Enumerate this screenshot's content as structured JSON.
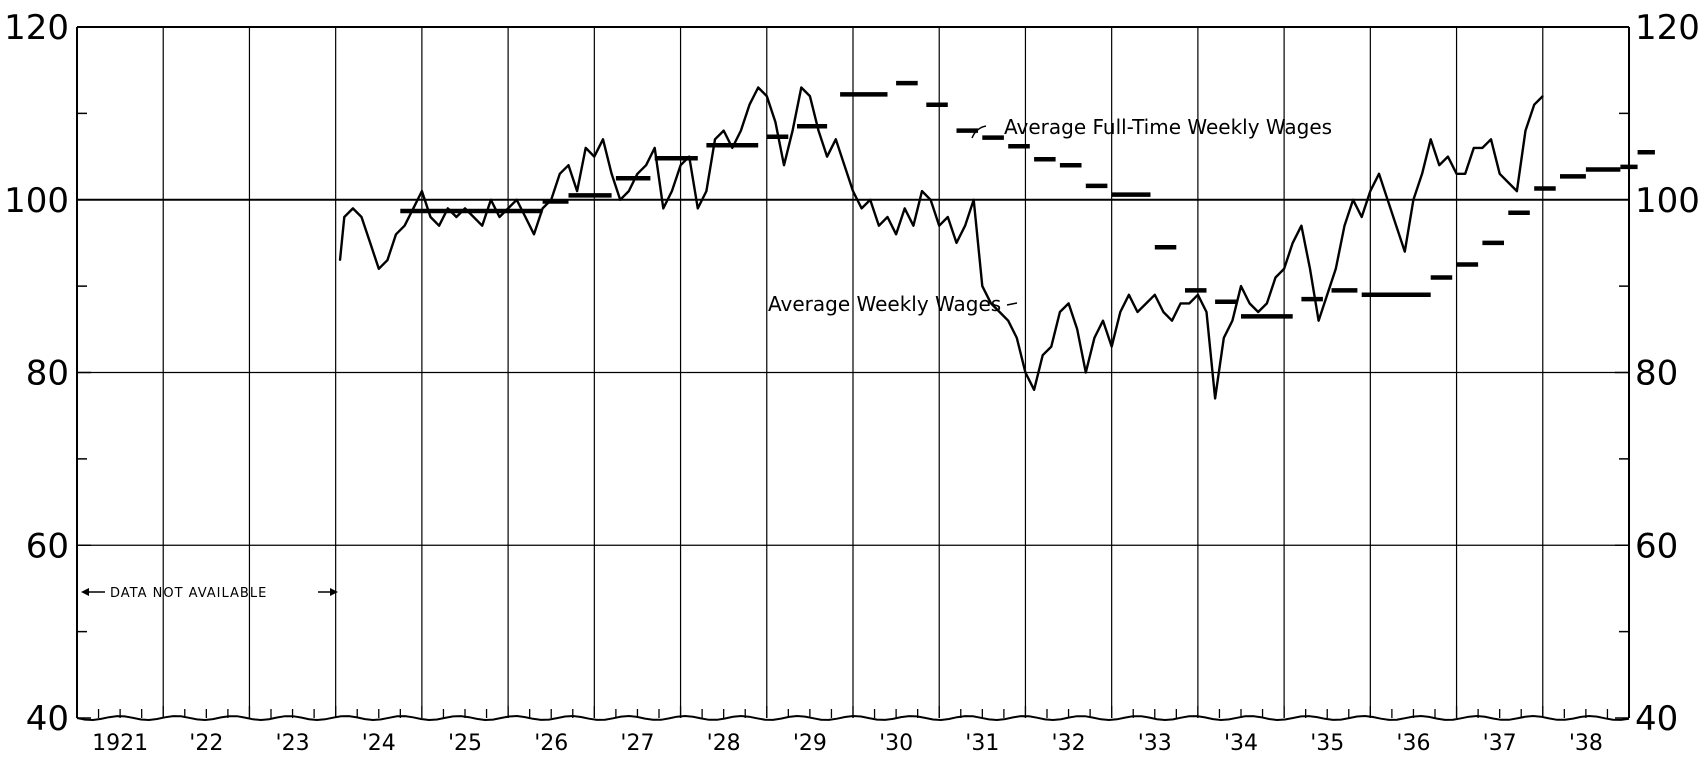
{
  "chart_data": {
    "type": "line",
    "title": "",
    "xlabel": "",
    "ylabel": "",
    "xlim": [
      1921,
      1939
    ],
    "ylim": [
      40,
      120
    ],
    "grid": true,
    "y_ticks_major": [
      40,
      60,
      80,
      100,
      120
    ],
    "y_tick_labels": [
      "40",
      "60",
      "80",
      "100",
      "120"
    ],
    "x_tick_labels": [
      "1921",
      "'22",
      "'23",
      "'24",
      "'25",
      "'26",
      "'27",
      "'28",
      "'29",
      "'30",
      "'31",
      "'32",
      "'33",
      "'34",
      "'35",
      "'36",
      "'37",
      "'38"
    ],
    "annotations": {
      "data_not_available": "DATA NOT AVAILABLE",
      "full_time_label": "Average Full-Time Weekly Wages",
      "weekly_label": "Average Weekly Wages"
    },
    "reference_line": 100,
    "series": [
      {
        "key": "weekly",
        "style": "thin-line",
        "x": [
          1924.05,
          1924.1,
          1924.2,
          1924.3,
          1924.4,
          1924.5,
          1924.6,
          1924.7,
          1924.8,
          1924.9,
          1925.0,
          1925.1,
          1925.2,
          1925.3,
          1925.4,
          1925.5,
          1925.6,
          1925.7,
          1925.8,
          1925.9,
          1926.0,
          1926.1,
          1926.2,
          1926.3,
          1926.4,
          1926.5,
          1926.6,
          1926.7,
          1926.8,
          1926.9,
          1927.0,
          1927.1,
          1927.2,
          1927.3,
          1927.4,
          1927.5,
          1927.6,
          1927.7,
          1927.8,
          1927.9,
          1928.0,
          1928.1,
          1928.2,
          1928.3,
          1928.4,
          1928.5,
          1928.6,
          1928.7,
          1928.8,
          1928.9,
          1929.0,
          1929.1,
          1929.2,
          1929.3,
          1929.4,
          1929.5,
          1929.6,
          1929.7,
          1929.8,
          1929.9,
          1930.0,
          1930.1,
          1930.2,
          1930.3,
          1930.4,
          1930.5,
          1930.6,
          1930.7,
          1930.8,
          1930.9,
          1931.0,
          1931.1,
          1931.2,
          1931.3,
          1931.4,
          1931.5,
          1931.6,
          1931.7,
          1931.8,
          1931.9,
          1932.0,
          1932.1,
          1932.2,
          1932.3,
          1932.4,
          1932.5,
          1932.6,
          1932.7,
          1932.8,
          1932.9,
          1933.0,
          1933.1,
          1933.2,
          1933.3,
          1933.4,
          1933.5,
          1933.6,
          1933.7,
          1933.8,
          1933.9,
          1934.0,
          1934.1,
          1934.2,
          1934.3,
          1934.4,
          1934.5,
          1934.6,
          1934.7,
          1934.8,
          1934.9,
          1935.0,
          1935.1,
          1935.2,
          1935.3,
          1935.4,
          1935.5,
          1935.6,
          1935.7,
          1935.8,
          1935.9,
          1936.0,
          1936.1,
          1936.2,
          1936.3,
          1936.4,
          1936.5,
          1936.6,
          1936.7,
          1936.8,
          1936.9,
          1937.0,
          1937.1,
          1937.2,
          1937.3,
          1937.4,
          1937.5,
          1937.6,
          1937.7,
          1937.8,
          1937.9,
          1938.0
        ],
        "values": [
          93,
          98,
          99,
          98,
          95,
          92,
          93,
          96,
          97,
          99,
          101,
          98,
          97,
          99,
          98,
          99,
          98,
          97,
          100,
          98,
          99,
          100,
          98,
          96,
          99,
          100,
          103,
          104,
          101,
          106,
          105,
          107,
          103,
          100,
          101,
          103,
          104,
          106,
          99,
          101,
          104,
          105,
          99,
          101,
          107,
          108,
          106,
          108,
          111,
          113,
          112,
          109,
          104,
          108,
          113,
          112,
          108,
          105,
          107,
          104,
          101,
          99,
          100,
          97,
          98,
          96,
          99,
          97,
          101,
          100,
          97,
          98,
          95,
          97,
          100,
          90,
          88,
          87,
          86,
          84,
          80,
          78,
          82,
          83,
          87,
          88,
          85,
          80,
          84,
          86,
          83,
          87,
          89,
          87,
          88,
          89,
          87,
          86,
          88,
          88,
          89,
          87,
          77,
          84,
          86,
          90,
          88,
          87,
          88,
          91,
          92,
          95,
          97,
          92,
          86,
          89,
          92,
          97,
          100,
          98,
          101,
          103,
          100,
          97,
          94,
          100,
          103,
          107,
          104,
          105,
          103,
          103,
          106,
          106,
          107,
          103,
          102,
          101,
          108,
          111,
          112
        ]
      },
      {
        "key": "full_time",
        "style": "step-dashes",
        "segments": [
          {
            "x0": 1924.75,
            "x1": 1926.4,
            "value": 98.7
          },
          {
            "x0": 1926.4,
            "x1": 1926.7,
            "value": 99.8
          },
          {
            "x0": 1926.7,
            "x1": 1927.2,
            "value": 100.5
          },
          {
            "x0": 1927.25,
            "x1": 1927.65,
            "value": 102.5
          },
          {
            "x0": 1927.7,
            "x1": 1928.2,
            "value": 104.8
          },
          {
            "x0": 1928.3,
            "x1": 1928.9,
            "value": 106.3
          },
          {
            "x0": 1929.0,
            "x1": 1929.25,
            "value": 107.3
          },
          {
            "x0": 1929.35,
            "x1": 1929.7,
            "value": 108.5
          },
          {
            "x0": 1929.85,
            "x1": 1930.4,
            "value": 112.2
          },
          {
            "x0": 1930.5,
            "x1": 1930.75,
            "value": 113.5
          },
          {
            "x0": 1930.85,
            "x1": 1931.1,
            "value": 111
          },
          {
            "x0": 1931.2,
            "x1": 1931.45,
            "value": 108
          },
          {
            "x0": 1931.5,
            "x1": 1931.75,
            "value": 107.2
          },
          {
            "x0": 1931.8,
            "x1": 1932.05,
            "value": 106.2
          },
          {
            "x0": 1932.1,
            "x1": 1932.35,
            "value": 104.7
          },
          {
            "x0": 1932.4,
            "x1": 1932.65,
            "value": 104
          },
          {
            "x0": 1932.7,
            "x1": 1932.95,
            "value": 101.6
          },
          {
            "x0": 1933.0,
            "x1": 1933.45,
            "value": 100.6
          },
          {
            "x0": 1933.5,
            "x1": 1933.75,
            "value": 94.5
          },
          {
            "x0": 1933.85,
            "x1": 1934.1,
            "value": 89.5
          },
          {
            "x0": 1934.2,
            "x1": 1934.45,
            "value": 88.2
          },
          {
            "x0": 1934.5,
            "x1": 1935.1,
            "value": 86.5
          },
          {
            "x0": 1935.2,
            "x1": 1935.45,
            "value": 88.5
          },
          {
            "x0": 1935.55,
            "x1": 1935.85,
            "value": 89.5
          },
          {
            "x0": 1935.9,
            "x1": 1936.7,
            "value": 89
          },
          {
            "x0": 1936.7,
            "x1": 1936.95,
            "value": 91
          },
          {
            "x0": 1937.0,
            "x1": 1937.25,
            "value": 92.5
          },
          {
            "x0": 1937.3,
            "x1": 1937.55,
            "value": 95
          },
          {
            "x0": 1937.6,
            "x1": 1937.85,
            "value": 98.5
          },
          {
            "x0": 1937.9,
            "x1": 1938.15,
            "value": 101.3
          },
          {
            "x0": 1938.2,
            "x1": 1938.5,
            "value": 102.7
          },
          {
            "x0": 1938.5,
            "x1": 1938.9,
            "value": 103.5
          },
          {
            "x0": 1938.9,
            "x1": 1939.1,
            "value": 103.8
          },
          {
            "x0": 1939.1,
            "x1": 1939.3,
            "value": 105.5
          }
        ]
      }
    ]
  }
}
